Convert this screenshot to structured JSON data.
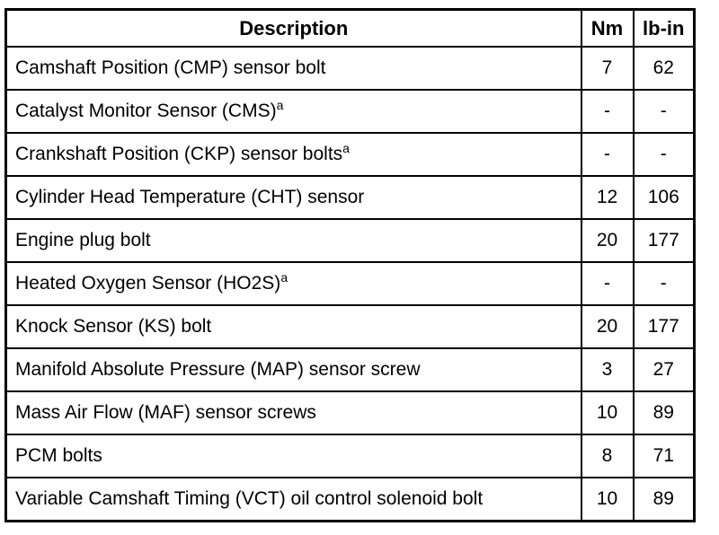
{
  "table": {
    "columns": [
      "Description",
      "Nm",
      "lb-in"
    ],
    "rows": [
      {
        "description": "Camshaft Position (CMP) sensor bolt",
        "footnote": "",
        "nm": "7",
        "lb_in": "62"
      },
      {
        "description": "Catalyst Monitor Sensor (CMS)",
        "footnote": "a",
        "nm": "-",
        "lb_in": "-"
      },
      {
        "description": "Crankshaft Position (CKP) sensor bolts",
        "footnote": "a",
        "nm": "-",
        "lb_in": "-"
      },
      {
        "description": "Cylinder Head Temperature (CHT) sensor",
        "footnote": "",
        "nm": "12",
        "lb_in": "106"
      },
      {
        "description": "Engine plug bolt",
        "footnote": "",
        "nm": "20",
        "lb_in": "177"
      },
      {
        "description": "Heated Oxygen Sensor (HO2S)",
        "footnote": "a",
        "nm": "-",
        "lb_in": "-"
      },
      {
        "description": "Knock Sensor (KS) bolt",
        "footnote": "",
        "nm": "20",
        "lb_in": "177"
      },
      {
        "description": "Manifold Absolute Pressure (MAP) sensor screw",
        "footnote": "",
        "nm": "3",
        "lb_in": "27"
      },
      {
        "description": "Mass Air Flow (MAF) sensor screws",
        "footnote": "",
        "nm": "10",
        "lb_in": "89"
      },
      {
        "description": "PCM bolts",
        "footnote": "",
        "nm": "8",
        "lb_in": "71"
      },
      {
        "description": "Variable Camshaft Timing (VCT) oil control solenoid bolt",
        "footnote": "",
        "nm": "10",
        "lb_in": "89"
      }
    ],
    "colors": {
      "border": "#000000",
      "text": "#000000",
      "background": "#ffffff"
    }
  }
}
